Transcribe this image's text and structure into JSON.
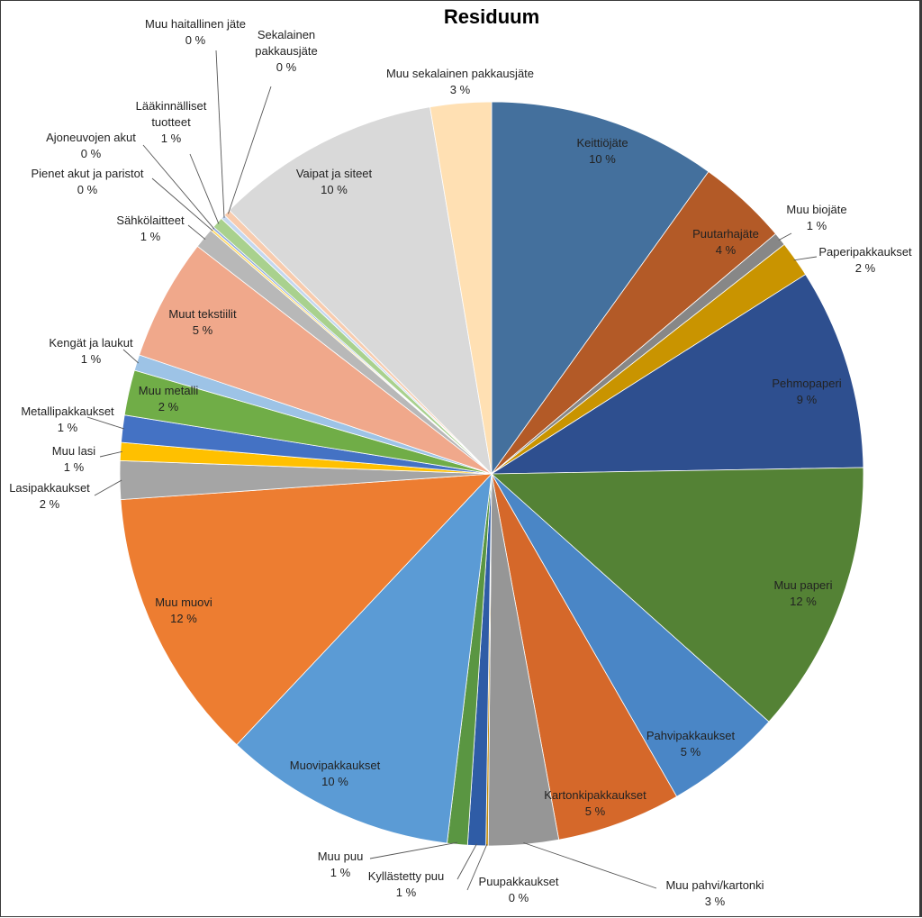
{
  "chart_data": {
    "type": "pie",
    "title": "Residuum",
    "slices": [
      {
        "name": "Keittiöjäte",
        "pct_label": "10 %",
        "value": 10.1,
        "color": "#44709d"
      },
      {
        "name": "Puutarhajäte",
        "pct_label": "4 %",
        "value": 4.0,
        "color": "#b35a27"
      },
      {
        "name": "Muu biojäte",
        "pct_label": "1 %",
        "value": 0.6,
        "color": "#878787"
      },
      {
        "name": "Paperipakkaukset",
        "pct_label": "2 %",
        "value": 1.6,
        "color": "#c99400"
      },
      {
        "name": "Pehmopaperi",
        "pct_label": "9 %",
        "value": 8.9,
        "color": "#2e4f8f"
      },
      {
        "name": "Muu paperi",
        "pct_label": "12 %",
        "value": 12.1,
        "color": "#548235"
      },
      {
        "name": "Pahvipakkaukset",
        "pct_label": "5 %",
        "value": 5.2,
        "color": "#4a86c6"
      },
      {
        "name": "Kartonkipakkaukset",
        "pct_label": "5 %",
        "value": 5.5,
        "color": "#d5682a"
      },
      {
        "name": "Muu pahvi/kartonki",
        "pct_label": "3 %",
        "value": 3.1,
        "color": "#969696"
      },
      {
        "name": "Puupakkaukset",
        "pct_label": "0 %",
        "value": 0.1,
        "color": "#c48a00"
      },
      {
        "name": "Kyllästetty puu",
        "pct_label": "1 %",
        "value": 0.8,
        "color": "#2f5ca6"
      },
      {
        "name": "Muu puu",
        "pct_label": "1 %",
        "value": 0.9,
        "color": "#5a9642"
      },
      {
        "name": "Muovipakkaukset",
        "pct_label": "10 %",
        "value": 10.3,
        "color": "#5b9bd5"
      },
      {
        "name": "Muu muovi",
        "pct_label": "12 %",
        "value": 12.1,
        "color": "#ed7d31"
      },
      {
        "name": "Lasipakkaukset",
        "pct_label": "2 %",
        "value": 1.7,
        "color": "#a5a5a5"
      },
      {
        "name": "Muu lasi",
        "pct_label": "1 %",
        "value": 0.8,
        "color": "#ffc000"
      },
      {
        "name": "Metallipakkaukset",
        "pct_label": "1 %",
        "value": 1.2,
        "color": "#4472c4"
      },
      {
        "name": "Muu metalli",
        "pct_label": "2 %",
        "value": 2.0,
        "color": "#70ad47"
      },
      {
        "name": "Kengät ja laukut",
        "pct_label": "1 %",
        "value": 0.7,
        "color": "#9dc3e6"
      },
      {
        "name": "Muut tekstiilit",
        "pct_label": "5 %",
        "value": 5.4,
        "color": "#f0a88b"
      },
      {
        "name": "Sähkölaitteet",
        "pct_label": "1 %",
        "value": 0.9,
        "color": "#b8b8b8"
      },
      {
        "name": "Pienet akut ja paristot",
        "pct_label": "0 %",
        "value": 0.1,
        "color": "#ffd966"
      },
      {
        "name": "Ajoneuvojen akut",
        "pct_label": "0 %",
        "value": 0.1,
        "color": "#8faadc"
      },
      {
        "name": "Lääkinnälliset tuotteet",
        "pct_label": "1 %",
        "value": 0.5,
        "color": "#a9d18e"
      },
      {
        "name": "Muu haitallinen jäte",
        "pct_label": "0 %",
        "value": 0.2,
        "color": "#c5d8f0"
      },
      {
        "name": "Sekalainen pakkausjäte",
        "pct_label": "0 %",
        "value": 0.3,
        "color": "#f8cbad"
      },
      {
        "name": "Vaipat ja siteet",
        "pct_label": "10 %",
        "value": 10.0,
        "color": "#d9d9d9"
      },
      {
        "name": "Muu sekalainen pakkausjäte",
        "pct_label": "3 %",
        "value": 2.7,
        "color": "#ffe0b3"
      }
    ],
    "label_lines": {
      "Muu haitallinen jäte": [
        "Muu haitallinen jäte"
      ],
      "Sekalainen pakkausjäte": [
        "Sekalainen",
        "pakkausjäte"
      ],
      "Lääkinnälliset tuotteet": [
        "Lääkinnälliset",
        "tuotteet"
      ]
    }
  }
}
